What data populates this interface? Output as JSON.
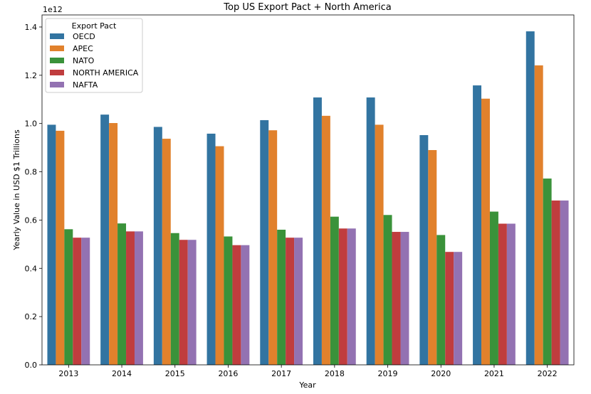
{
  "chart_data": {
    "type": "bar",
    "title": "Top US Export Pact + North America",
    "xlabel": "Year",
    "ylabel": "Yearly Value in USD $1 Trillions",
    "y_offset_label": "1e12",
    "ylim": [
      0,
      1.45
    ],
    "yticks": [
      "0.0",
      "0.2",
      "0.4",
      "0.6",
      "0.8",
      "1.0",
      "1.2",
      "1.4"
    ],
    "categories": [
      "2013",
      "2014",
      "2015",
      "2016",
      "2017",
      "2018",
      "2019",
      "2020",
      "2021",
      "2022"
    ],
    "legend_title": "Export Pact",
    "legend_position": "top-left",
    "series": [
      {
        "name": "OECD",
        "color": "#3274a1",
        "values": [
          0.995,
          1.037,
          0.986,
          0.958,
          1.014,
          1.108,
          1.108,
          0.952,
          1.158,
          1.382
        ]
      },
      {
        "name": "APEC",
        "color": "#e1812c",
        "values": [
          0.97,
          1.002,
          0.937,
          0.906,
          0.972,
          1.032,
          0.995,
          0.89,
          1.103,
          1.241
        ]
      },
      {
        "name": "NATO",
        "color": "#3a923a",
        "values": [
          0.562,
          0.586,
          0.546,
          0.532,
          0.56,
          0.614,
          0.621,
          0.538,
          0.635,
          0.772
        ]
      },
      {
        "name": "NORTH AMERICA",
        "color": "#c03d3e",
        "values": [
          0.527,
          0.553,
          0.518,
          0.496,
          0.527,
          0.565,
          0.551,
          0.468,
          0.585,
          0.681
        ]
      },
      {
        "name": "NAFTA",
        "color": "#9372b2",
        "values": [
          0.527,
          0.553,
          0.518,
          0.496,
          0.527,
          0.565,
          0.551,
          0.468,
          0.585,
          0.681
        ]
      }
    ]
  }
}
